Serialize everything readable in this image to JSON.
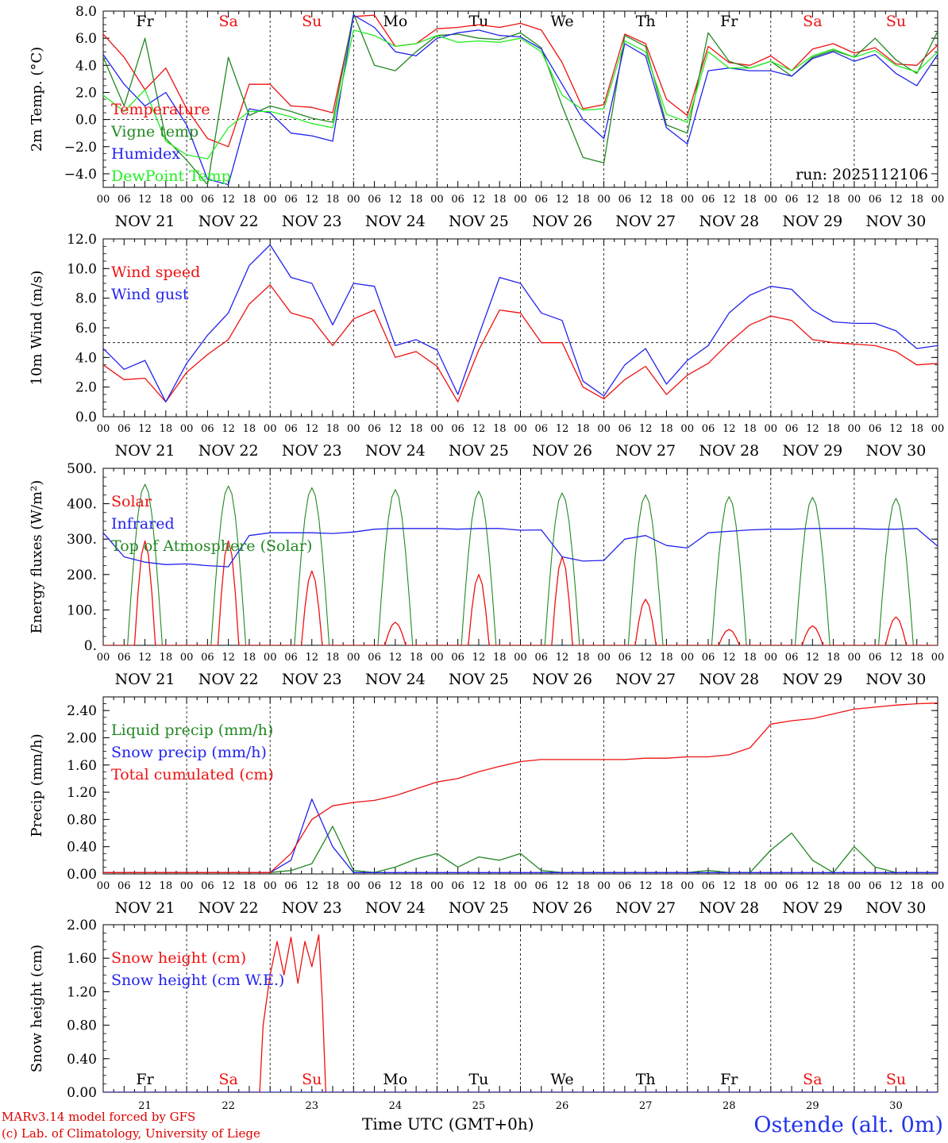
{
  "figure": {
    "run_label": "run: 2025112106",
    "x_title": "Time UTC (GMT+0h)",
    "station": "Ostende (alt. 0m)",
    "credit_model": "MARv3.14 model forced by GFS",
    "credit_lab": "(c) Lab. of Climatology, University of Liege",
    "hour_ticks": [
      "00",
      "06",
      "12",
      "18"
    ],
    "final_tick": "00",
    "dates": [
      "NOV 21",
      "NOV 22",
      "NOV 23",
      "NOV 24",
      "NOV 25",
      "NOV 26",
      "NOV 27",
      "NOV 28",
      "NOV 29",
      "NOV 30"
    ],
    "day_numbers": [
      "21",
      "22",
      "23",
      "24",
      "25",
      "26",
      "27",
      "28",
      "29",
      "30"
    ],
    "weekdays": [
      "Fr",
      "Sa",
      "Su",
      "Mo",
      "Tu",
      "We",
      "Th",
      "Fr",
      "Sa",
      "Su"
    ],
    "weekend_color": "#ee1111",
    "weekday_color": "#000000"
  },
  "chart_data": [
    {
      "type": "line",
      "id": "temp",
      "ylabel": "2m Temp. (°C)",
      "ylim": [
        -5,
        8
      ],
      "yticks": [
        8,
        6,
        4,
        2,
        0,
        -2,
        -4
      ],
      "ytick_labels": [
        "8.0",
        "6.0",
        "4.0",
        "2.0",
        "0.0",
        "−2.0",
        "−4.0"
      ],
      "refline": 0,
      "show_weekdays": true,
      "x_hours": [
        0,
        6,
        12,
        18,
        24,
        30,
        36,
        42,
        48,
        54,
        60,
        66,
        72,
        78,
        84,
        90,
        96,
        102,
        108,
        114,
        120,
        126,
        132,
        138,
        144,
        150,
        156,
        162,
        168,
        174,
        180,
        186,
        192,
        198,
        204,
        210,
        216,
        222,
        228,
        234,
        240
      ],
      "series": [
        {
          "name": "Temperature",
          "color": "#ee1111",
          "values": [
            6.3,
            4.6,
            2.2,
            3.8,
            0.8,
            -1.4,
            -2.0,
            2.6,
            2.6,
            1.0,
            0.9,
            0.5,
            7.6,
            7.7,
            5.4,
            5.6,
            6.7,
            6.8,
            7.0,
            6.8,
            7.1,
            6.6,
            4.2,
            0.8,
            1.1,
            6.3,
            5.6,
            1.5,
            0.3,
            5.4,
            4.2,
            4.0,
            4.7,
            3.6,
            5.2,
            5.6,
            4.9,
            5.3,
            4.1,
            4.0,
            5.5
          ]
        },
        {
          "name": "Vigne temp",
          "color": "#228822",
          "values": [
            4.6,
            1.0,
            6.0,
            -1.4,
            -3.0,
            -4.8,
            4.6,
            0.3,
            1.0,
            0.6,
            0.1,
            -0.2,
            7.8,
            4.0,
            3.6,
            5.0,
            6.2,
            6.3,
            6.0,
            5.9,
            6.4,
            5.3,
            1.0,
            -2.8,
            -3.2,
            6.2,
            5.4,
            -0.4,
            -1.0,
            6.4,
            4.3,
            3.8,
            4.3,
            3.2,
            4.6,
            5.1,
            4.6,
            6.0,
            4.4,
            3.4,
            6.5
          ]
        },
        {
          "name": "Humidex",
          "color": "#2222ee",
          "values": [
            4.8,
            2.6,
            1.0,
            2.0,
            -0.4,
            -4.4,
            -4.8,
            0.8,
            0.5,
            -1.0,
            -1.2,
            -1.6,
            7.7,
            6.8,
            5.0,
            4.7,
            6.0,
            6.4,
            6.6,
            6.2,
            6.1,
            5.2,
            2.6,
            0.0,
            -1.4,
            5.6,
            4.7,
            -0.6,
            -1.8,
            3.6,
            3.8,
            3.6,
            3.6,
            3.2,
            4.5,
            5.0,
            4.3,
            4.8,
            3.4,
            2.5,
            4.8
          ]
        },
        {
          "name": "DewPoint Temp",
          "color": "#22ee22",
          "values": [
            1.8,
            0.6,
            2.2,
            -1.6,
            -2.6,
            -2.9,
            -0.6,
            0.6,
            0.6,
            0.2,
            -0.3,
            -0.6,
            6.6,
            6.2,
            5.4,
            5.6,
            6.2,
            5.7,
            5.8,
            5.7,
            6.0,
            5.0,
            1.8,
            0.7,
            0.8,
            5.8,
            5.0,
            0.4,
            -0.2,
            5.0,
            3.8,
            3.8,
            4.3,
            3.6,
            4.7,
            5.2,
            4.6,
            5.1,
            4.0,
            3.5,
            5.0
          ]
        }
      ],
      "legend": [
        "Temperature",
        "Vigne temp",
        "Humidex",
        "DewPoint Temp"
      ]
    },
    {
      "type": "line",
      "id": "wind",
      "ylabel": "10m Wind (m/s)",
      "ylim": [
        0,
        12
      ],
      "yticks": [
        12,
        10,
        8,
        6,
        4,
        2,
        0
      ],
      "ytick_labels": [
        "12.0",
        "10.0",
        "8.0",
        "6.0",
        "4.0",
        "2.0",
        "0.0"
      ],
      "refline": 5,
      "show_weekdays": false,
      "x_hours": [
        0,
        6,
        12,
        18,
        24,
        30,
        36,
        42,
        48,
        54,
        60,
        66,
        72,
        78,
        84,
        90,
        96,
        102,
        108,
        114,
        120,
        126,
        132,
        138,
        144,
        150,
        156,
        162,
        168,
        174,
        180,
        186,
        192,
        198,
        204,
        210,
        216,
        222,
        228,
        234,
        240
      ],
      "series": [
        {
          "name": "Wind speed",
          "color": "#ee1111",
          "values": [
            3.5,
            2.5,
            2.6,
            1.0,
            3.0,
            4.2,
            5.2,
            7.6,
            8.9,
            7.0,
            6.6,
            4.8,
            6.6,
            7.2,
            4.0,
            4.4,
            3.4,
            1.0,
            4.5,
            7.2,
            7.0,
            5.0,
            5.0,
            2.0,
            1.2,
            2.5,
            3.4,
            1.5,
            2.8,
            3.6,
            5.0,
            6.2,
            6.8,
            6.5,
            5.2,
            5.0,
            4.9,
            4.8,
            4.4,
            3.5,
            3.6
          ]
        },
        {
          "name": "Wind gust",
          "color": "#2222ee",
          "values": [
            4.6,
            3.2,
            3.8,
            1.0,
            3.6,
            5.5,
            7.0,
            10.2,
            11.6,
            9.4,
            9.0,
            6.2,
            9.0,
            8.8,
            4.8,
            5.2,
            4.5,
            1.5,
            5.5,
            9.4,
            9.0,
            7.0,
            6.5,
            2.4,
            1.4,
            3.5,
            4.6,
            2.2,
            3.8,
            4.8,
            7.0,
            8.2,
            8.8,
            8.6,
            7.2,
            6.4,
            6.3,
            6.3,
            5.8,
            4.6,
            4.8
          ]
        }
      ],
      "legend": [
        "Wind speed",
        "Wind gust"
      ]
    },
    {
      "type": "line",
      "id": "energy",
      "ylabel": "Energy fluxes (W/m²)",
      "ylim": [
        0,
        500
      ],
      "yticks": [
        500,
        400,
        300,
        200,
        100,
        0
      ],
      "ytick_labels": [
        "500.",
        "400.",
        "300.",
        "200.",
        "100.",
        "0."
      ],
      "refline": null,
      "show_weekdays": false,
      "daily_peaks": {
        "top_of_atmosphere_solar": [
          455,
          450,
          445,
          440,
          435,
          430,
          425,
          420,
          418,
          415
        ],
        "solar": [
          295,
          295,
          210,
          65,
          200,
          250,
          130,
          45,
          55,
          80
        ]
      },
      "x_hours": [
        0,
        6,
        12,
        18,
        24,
        30,
        36,
        42,
        48,
        54,
        60,
        66,
        72,
        78,
        84,
        90,
        96,
        102,
        108,
        114,
        120,
        126,
        132,
        138,
        144,
        150,
        156,
        162,
        168,
        174,
        180,
        186,
        192,
        198,
        204,
        210,
        216,
        222,
        228,
        234,
        240
      ],
      "series": [
        {
          "name": "Infrared",
          "color": "#2222ee",
          "values": [
            318,
            250,
            235,
            228,
            230,
            225,
            222,
            310,
            318,
            318,
            318,
            316,
            320,
            328,
            330,
            330,
            330,
            328,
            330,
            330,
            325,
            326,
            250,
            238,
            240,
            300,
            310,
            282,
            275,
            318,
            322,
            326,
            328,
            328,
            330,
            330,
            330,
            328,
            328,
            330,
            280
          ]
        }
      ],
      "legend": [
        "Solar",
        "Infrared",
        "Top of Atmosphere (Solar)"
      ],
      "legend_colors": [
        "#ee1111",
        "#2222ee",
        "#228822"
      ]
    },
    {
      "type": "line",
      "id": "precip",
      "ylabel": "Precip (mm/h)",
      "ylim": [
        0,
        2.6
      ],
      "yticks": [
        2.4,
        2.0,
        1.6,
        1.2,
        0.8,
        0.4,
        0.0
      ],
      "ytick_labels": [
        "2.40",
        "2.00",
        "1.60",
        "1.20",
        "0.80",
        "0.40",
        "0.00"
      ],
      "refline": null,
      "show_weekdays": false,
      "x_hours": [
        0,
        6,
        12,
        18,
        24,
        30,
        36,
        42,
        48,
        54,
        60,
        66,
        72,
        78,
        84,
        90,
        96,
        102,
        108,
        114,
        120,
        126,
        132,
        138,
        144,
        150,
        156,
        162,
        168,
        174,
        180,
        186,
        192,
        198,
        204,
        210,
        216,
        222,
        228,
        234,
        240
      ],
      "series": [
        {
          "name": "Liquid precip (mm/h)",
          "color": "#228822",
          "values": [
            0.02,
            0.02,
            0.02,
            0.02,
            0.02,
            0.02,
            0.02,
            0.02,
            0.02,
            0.05,
            0.15,
            0.7,
            0.05,
            0.02,
            0.1,
            0.22,
            0.3,
            0.1,
            0.25,
            0.2,
            0.3,
            0.05,
            0.02,
            0.02,
            0.02,
            0.02,
            0.02,
            0.02,
            0.02,
            0.05,
            0.02,
            0.02,
            0.35,
            0.6,
            0.2,
            0.02,
            0.4,
            0.1,
            0.02,
            0.02,
            0.02
          ]
        },
        {
          "name": "Snow precip (mm/h)",
          "color": "#2222ee",
          "values": [
            0.02,
            0.02,
            0.02,
            0.02,
            0.02,
            0.02,
            0.02,
            0.02,
            0.02,
            0.2,
            1.1,
            0.4,
            0.02,
            0.02,
            0.02,
            0.02,
            0.02,
            0.02,
            0.02,
            0.02,
            0.02,
            0.02,
            0.02,
            0.02,
            0.02,
            0.02,
            0.02,
            0.02,
            0.02,
            0.02,
            0.02,
            0.02,
            0.02,
            0.02,
            0.02,
            0.02,
            0.02,
            0.02,
            0.02,
            0.02,
            0.02
          ]
        },
        {
          "name": "Total cumulated (cm)",
          "color": "#ee1111",
          "values": [
            0.02,
            0.02,
            0.02,
            0.02,
            0.02,
            0.02,
            0.02,
            0.02,
            0.02,
            0.3,
            0.8,
            1.0,
            1.05,
            1.08,
            1.15,
            1.25,
            1.35,
            1.4,
            1.5,
            1.58,
            1.65,
            1.68,
            1.68,
            1.68,
            1.68,
            1.68,
            1.7,
            1.7,
            1.72,
            1.72,
            1.75,
            1.85,
            2.2,
            2.25,
            2.28,
            2.35,
            2.42,
            2.45,
            2.48,
            2.5,
            2.51
          ]
        }
      ],
      "legend": [
        "Liquid precip (mm/h)",
        "Snow precip (mm/h)",
        "Total cumulated (cm)"
      ]
    },
    {
      "type": "line",
      "id": "snow",
      "ylabel": "Snow height (cm)",
      "ylim": [
        0,
        2
      ],
      "yticks": [
        2.0,
        1.6,
        1.2,
        0.8,
        0.4,
        0.0
      ],
      "ytick_labels": [
        "2.00",
        "1.60",
        "1.20",
        "0.80",
        "0.40",
        "0.00"
      ],
      "refline": null,
      "show_weekdays": "inside",
      "x_hours": [
        0,
        6,
        12,
        18,
        24,
        30,
        36,
        42,
        45,
        46,
        48,
        50,
        52,
        54,
        56,
        58,
        60,
        62,
        63,
        64,
        72,
        96,
        120,
        144,
        168,
        192,
        216,
        240
      ],
      "series": [
        {
          "name": "Snow height (cm)",
          "color": "#ee1111",
          "values": [
            0,
            0,
            0,
            0,
            0,
            0,
            0,
            0,
            0,
            0.8,
            1.4,
            1.8,
            1.4,
            1.85,
            1.3,
            1.8,
            1.5,
            1.88,
            1.1,
            0,
            0,
            0,
            0,
            0,
            0,
            0,
            0,
            0
          ]
        },
        {
          "name": "Snow height (cm W.E.)",
          "color": "#2222ee",
          "values": [
            0,
            0,
            0,
            0,
            0,
            0,
            0,
            0,
            0,
            0,
            0,
            0,
            0,
            0,
            0,
            0,
            0,
            0,
            0,
            0,
            0,
            0,
            0,
            0,
            0,
            0,
            0,
            0
          ]
        }
      ],
      "legend": [
        "Snow height (cm)",
        "Snow height (cm W.E.)"
      ]
    }
  ]
}
